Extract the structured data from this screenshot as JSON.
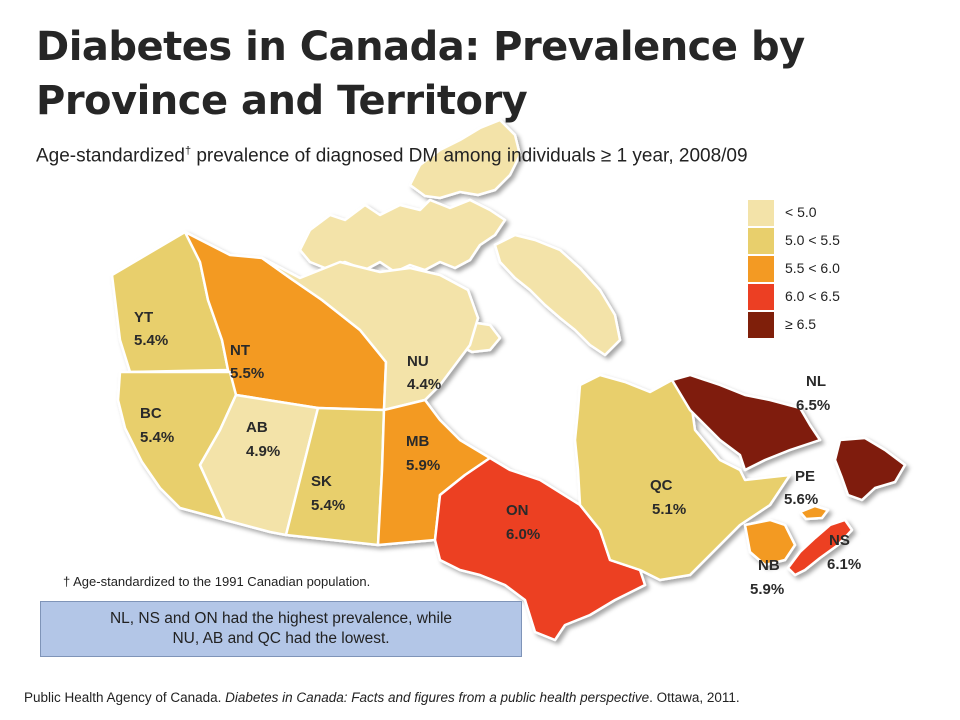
{
  "title": "Diabetes in Canada: Prevalence by Province and Territory",
  "subtitle": {
    "before": "Age-standardized",
    "dagger": "†",
    "after": " prevalence of diagnosed DM among individuals ≥ 1 year, 2008/09"
  },
  "legend": [
    {
      "label": "< 5.0",
      "color": "#f3e3a9"
    },
    {
      "label": "5.0 < 5.5",
      "color": "#e8cf6c"
    },
    {
      "label": "5.5 < 6.0",
      "color": "#f39a23"
    },
    {
      "label": "6.0 < 6.5",
      "color": "#ec3f23"
    },
    {
      "label": "≥ 6.5",
      "color": "#7f1f0a"
    }
  ],
  "regions": [
    {
      "code": "YT",
      "value": "5.4%",
      "color": "#e8cf6c"
    },
    {
      "code": "NT",
      "value": "5.5%",
      "color": "#f39a23"
    },
    {
      "code": "NU",
      "value": "4.4%",
      "color": "#f3e3a9"
    },
    {
      "code": "BC",
      "value": "5.4%",
      "color": "#e8cf6c"
    },
    {
      "code": "AB",
      "value": "4.9%",
      "color": "#f3e3a9"
    },
    {
      "code": "SK",
      "value": "5.4%",
      "color": "#e8cf6c"
    },
    {
      "code": "MB",
      "value": "5.9%",
      "color": "#f39a23"
    },
    {
      "code": "ON",
      "value": "6.0%",
      "color": "#ec3f23"
    },
    {
      "code": "QC",
      "value": "5.1%",
      "color": "#e8cf6c"
    },
    {
      "code": "NL",
      "value": "6.5%",
      "color": "#7f1f0a"
    },
    {
      "code": "PE",
      "value": "5.6%",
      "color": "#f39a23"
    },
    {
      "code": "NB",
      "value": "5.9%",
      "color": "#f39a23"
    },
    {
      "code": "NS",
      "value": "6.1%",
      "color": "#ec3f23"
    }
  ],
  "footnote": "† Age-standardized to the 1991 Canadian population.",
  "callout": {
    "line1": "NL, NS and ON had the highest prevalence, while",
    "line2": "NU, AB and QC had the lowest."
  },
  "source": {
    "prefix": "Public Health Agency of Canada. ",
    "italic": "Diabetes in Canada: Facts and figures from a public health perspective",
    "suffix": ". Ottawa, 2011."
  }
}
